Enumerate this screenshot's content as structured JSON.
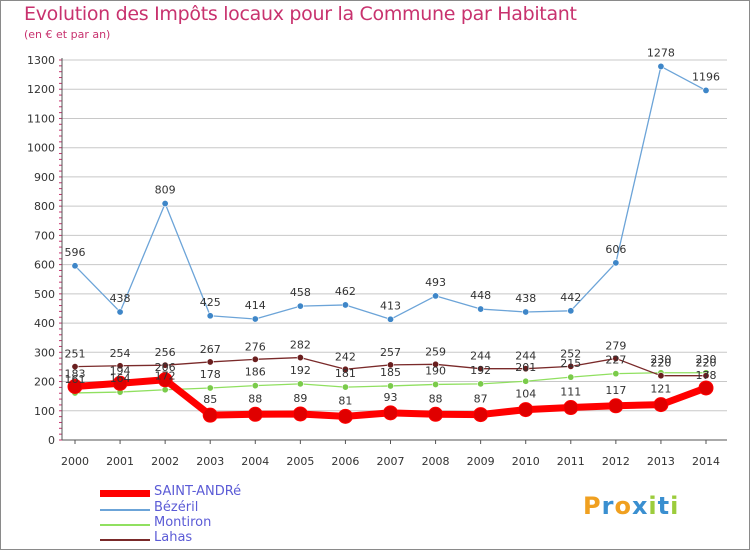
{
  "title": "Evolution des Impôts locaux pour la Commune par Habitant",
  "subtitle": "(en € et par an)",
  "colors": {
    "title": "#c8326e",
    "grid": "#c8c8c8",
    "axis_ticks": "#c8326e",
    "legend_text": "#5b5bd6"
  },
  "chart_data": {
    "type": "line",
    "title": "Evolution des Impôts locaux pour la Commune par Habitant",
    "subtitle": "(en € et par an)",
    "x": [
      "2000",
      "2001",
      "2002",
      "2003",
      "2004",
      "2005",
      "2006",
      "2007",
      "2008",
      "2009",
      "2010",
      "2011",
      "2012",
      "2013",
      "2014"
    ],
    "ylim": [
      0,
      1300
    ],
    "yticks": [
      0,
      100,
      200,
      300,
      400,
      500,
      600,
      700,
      800,
      900,
      1000,
      1100,
      1200,
      1300
    ],
    "grid": "horizontal",
    "series": [
      {
        "name": "SAINT-ANDRé",
        "color": "#ff0000",
        "marker": "#e00000",
        "values": [
          183,
          194,
          206,
          85,
          88,
          89,
          81,
          93,
          88,
          87,
          104,
          111,
          117,
          121,
          178
        ],
        "labels": [
          "183",
          "194",
          "206",
          "85",
          "88",
          "89",
          "81",
          "93",
          "88",
          "87",
          "104",
          "111",
          "117",
          "121",
          "178"
        ]
      },
      {
        "name": "Bézéril",
        "color": "#6ca4d8",
        "marker": "#3e86c8",
        "values": [
          596,
          438,
          809,
          425,
          414,
          458,
          462,
          413,
          493,
          448,
          438,
          442,
          606,
          1278,
          1196
        ],
        "labels": [
          "596",
          "438",
          "809",
          "425",
          "414",
          "458",
          "462",
          "413",
          "493",
          "448",
          "438",
          "442",
          "606",
          "1278",
          "1196"
        ]
      },
      {
        "name": "Montiron",
        "color": "#90e060",
        "marker": "#7acb4a",
        "values": [
          161,
          164,
          172,
          178,
          186,
          192,
          181,
          185,
          190,
          192,
          201,
          215,
          227,
          230,
          230
        ],
        "labels": [
          "161",
          "164",
          "172",
          "178",
          "186",
          "192",
          "181",
          "185",
          "190",
          "192",
          "201",
          "215",
          "227",
          "230",
          "230"
        ]
      },
      {
        "name": "Lahas",
        "color": "#7a2a2a",
        "marker": "#6a1e1e",
        "values": [
          251,
          254,
          256,
          267,
          276,
          282,
          242,
          257,
          259,
          244,
          244,
          252,
          279,
          220,
          220
        ],
        "labels": [
          "251",
          "254",
          "256",
          "267",
          "276",
          "282",
          "242",
          "257",
          "259",
          "244",
          "244",
          "252",
          "279",
          "220",
          "220"
        ]
      }
    ]
  },
  "legend": [
    {
      "label": "SAINT-ANDRé",
      "color": "#ff0000",
      "thickness": 7
    },
    {
      "label": "Bézéril",
      "color": "#6ca4d8",
      "thickness": 2
    },
    {
      "label": "Montiron",
      "color": "#90e060",
      "thickness": 2
    },
    {
      "label": "Lahas",
      "color": "#7a2a2a",
      "thickness": 2
    }
  ],
  "logo": {
    "letters": [
      "P",
      "r",
      "o",
      "x",
      "i",
      "t",
      "i"
    ],
    "colors": [
      "#f0a020",
      "#3a8fd0",
      "#f0a020",
      "#3a8fd0",
      "#9ccc3c",
      "#3a8fd0",
      "#9ccc3c"
    ]
  }
}
